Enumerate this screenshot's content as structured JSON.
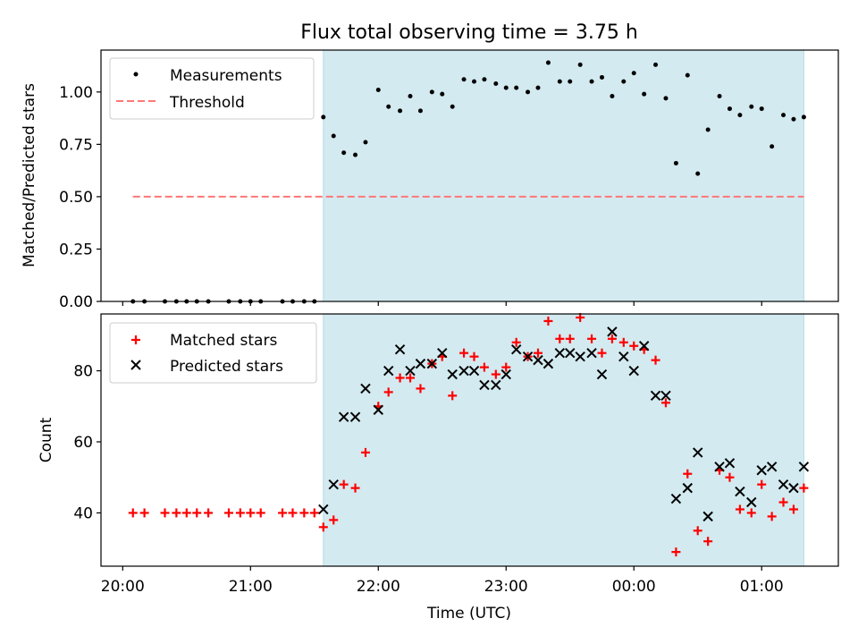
{
  "figure": {
    "title": "Flux total observing time = 3.75 h",
    "xlabel": "Time (UTC)",
    "x_ticks": [
      "20:00",
      "21:00",
      "22:00",
      "23:00",
      "00:00",
      "01:00"
    ],
    "x_tick_hours": [
      20,
      21,
      22,
      23,
      24,
      25
    ],
    "xlim_hours": [
      19.83,
      25.6
    ],
    "observing_window_hours": [
      21.57,
      25.33
    ],
    "window_color": "#d3eaf0"
  },
  "chart_data": [
    {
      "type": "scatter",
      "ylabel": "Matched/Predicted stars",
      "ylim": [
        0,
        1.2
      ],
      "y_ticks": [
        "0.00",
        "0.25",
        "0.50",
        "0.75",
        "1.00"
      ],
      "y_tick_values": [
        0,
        0.25,
        0.5,
        0.75,
        1.0
      ],
      "legend_position": "top-left",
      "threshold": {
        "name": "Threshold",
        "value": 0.5,
        "x_range_hours": [
          20.08,
          25.33
        ],
        "color": "#ff7777"
      },
      "series": [
        {
          "name": "Measurements",
          "color": "#000000",
          "x_hours": [
            20.08,
            20.17,
            20.33,
            20.42,
            20.5,
            20.58,
            20.67,
            20.83,
            20.92,
            21.0,
            21.08,
            21.25,
            21.33,
            21.42,
            21.5,
            21.57,
            21.65,
            21.73,
            21.82,
            21.9,
            22.0,
            22.08,
            22.17,
            22.25,
            22.33,
            22.42,
            22.5,
            22.58,
            22.67,
            22.75,
            22.83,
            22.92,
            23.0,
            23.08,
            23.17,
            23.25,
            23.33,
            23.42,
            23.5,
            23.58,
            23.67,
            23.75,
            23.83,
            23.92,
            24.0,
            24.08,
            24.17,
            24.25,
            24.33,
            24.42,
            24.5,
            24.58,
            24.67,
            24.75,
            24.83,
            24.92,
            25.0,
            25.08,
            25.17,
            25.25,
            25.33
          ],
          "y": [
            0,
            0,
            0,
            0,
            0,
            0,
            0,
            0,
            0,
            0,
            0,
            0,
            0,
            0,
            0,
            0.88,
            0.79,
            0.71,
            0.7,
            0.76,
            1.01,
            0.93,
            0.91,
            0.98,
            0.91,
            1.0,
            0.99,
            0.93,
            1.06,
            1.05,
            1.06,
            1.04,
            1.02,
            1.02,
            1.0,
            1.02,
            1.14,
            1.05,
            1.05,
            1.13,
            1.05,
            1.07,
            0.98,
            1.05,
            1.09,
            0.99,
            1.13,
            0.97,
            0.66,
            1.08,
            0.61,
            0.82,
            0.98,
            0.92,
            0.89,
            0.93,
            0.92,
            0.74,
            0.89,
            0.87,
            0.88
          ]
        }
      ]
    },
    {
      "type": "scatter",
      "ylabel": "Count",
      "ylim": [
        25,
        96
      ],
      "y_ticks": [
        "40",
        "60",
        "80"
      ],
      "y_tick_values": [
        40,
        60,
        80
      ],
      "legend_position": "top-left",
      "series": [
        {
          "name": "Matched stars",
          "marker": "plus",
          "color": "#ff0000",
          "x_hours": [
            20.08,
            20.17,
            20.33,
            20.42,
            20.5,
            20.58,
            20.67,
            20.83,
            20.92,
            21.0,
            21.08,
            21.25,
            21.33,
            21.42,
            21.5,
            21.57,
            21.65,
            21.73,
            21.82,
            21.9,
            22.0,
            22.08,
            22.17,
            22.25,
            22.33,
            22.42,
            22.5,
            22.58,
            22.67,
            22.75,
            22.83,
            22.92,
            23.0,
            23.08,
            23.17,
            23.25,
            23.33,
            23.42,
            23.5,
            23.58,
            23.67,
            23.75,
            23.83,
            23.92,
            24.0,
            24.08,
            24.17,
            24.25,
            24.33,
            24.42,
            24.5,
            24.58,
            24.67,
            24.75,
            24.83,
            24.92,
            25.0,
            25.08,
            25.17,
            25.25,
            25.33
          ],
          "y": [
            40,
            40,
            40,
            40,
            40,
            40,
            40,
            40,
            40,
            40,
            40,
            40,
            40,
            40,
            40,
            36,
            38,
            48,
            47,
            57,
            70,
            74,
            78,
            78,
            75,
            82,
            84,
            73,
            85,
            84,
            81,
            79,
            81,
            88,
            84,
            85,
            94,
            89,
            89,
            95,
            89,
            85,
            89,
            88,
            87,
            86,
            83,
            71,
            29,
            51,
            35,
            32,
            52,
            50,
            41,
            40,
            48,
            39,
            43,
            41,
            47
          ]
        },
        {
          "name": "Predicted stars",
          "marker": "x",
          "color": "#000000",
          "x_hours": [
            21.57,
            21.65,
            21.73,
            21.82,
            21.9,
            22.0,
            22.08,
            22.17,
            22.25,
            22.33,
            22.42,
            22.5,
            22.58,
            22.67,
            22.75,
            22.83,
            22.92,
            23.0,
            23.08,
            23.17,
            23.25,
            23.33,
            23.42,
            23.5,
            23.58,
            23.67,
            23.75,
            23.83,
            23.92,
            24.0,
            24.08,
            24.17,
            24.25,
            24.33,
            24.42,
            24.5,
            24.58,
            24.67,
            24.75,
            24.83,
            24.92,
            25.0,
            25.08,
            25.17,
            25.25,
            25.33
          ],
          "y": [
            41,
            48,
            67,
            67,
            75,
            69,
            80,
            86,
            80,
            82,
            82,
            85,
            79,
            80,
            80,
            76,
            76,
            79,
            86,
            84,
            83,
            82,
            85,
            85,
            84,
            85,
            79,
            91,
            84,
            80,
            87,
            73,
            73,
            44,
            47,
            57,
            39,
            53,
            54,
            46,
            43,
            52,
            53,
            48,
            47,
            53
          ]
        }
      ]
    }
  ]
}
